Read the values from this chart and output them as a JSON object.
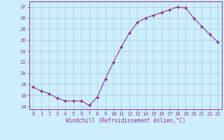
{
  "x": [
    0,
    1,
    2,
    3,
    4,
    5,
    6,
    7,
    8,
    9,
    10,
    11,
    12,
    13,
    14,
    15,
    16,
    17,
    18,
    19,
    20,
    21,
    22,
    23
  ],
  "y": [
    17.5,
    16.8,
    16.3,
    15.5,
    15.0,
    15.0,
    15.0,
    14.2,
    15.7,
    19.0,
    22.0,
    24.8,
    27.3,
    29.2,
    30.0,
    30.5,
    31.0,
    31.5,
    32.0,
    31.8,
    30.0,
    28.5,
    27.0,
    25.7
  ],
  "line_color": "#993399",
  "marker": "D",
  "marker_size": 2.0,
  "bg_color": "#cceeff",
  "grid_color": "#aacccc",
  "xlabel": "Windchill (Refroidissement éolien,°C)",
  "xlabel_color": "#993399",
  "ytick_labels": [
    "14",
    "16",
    "18",
    "20",
    "22",
    "24",
    "26",
    "28",
    "30",
    "32"
  ],
  "ytick_values": [
    14,
    16,
    18,
    20,
    22,
    24,
    26,
    28,
    30,
    32
  ],
  "xlim": [
    -0.5,
    23.5
  ],
  "ylim": [
    13.5,
    33.0
  ],
  "tick_color": "#993399",
  "spine_color": "#993399"
}
